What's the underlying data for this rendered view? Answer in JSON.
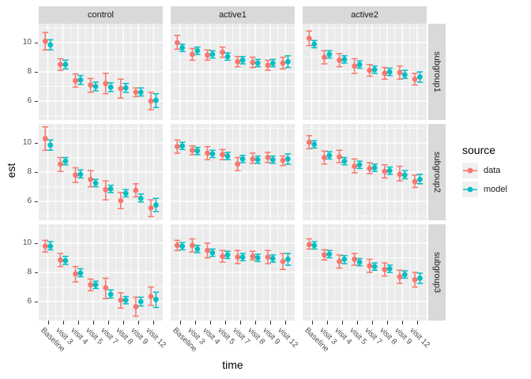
{
  "chart_data": {
    "type": "scatter",
    "subtype": "pointrange-facet-grid",
    "title": "",
    "xlabel": "time",
    "ylabel": "est",
    "yticks": [
      6,
      8,
      10
    ],
    "ylim": [
      4.7,
      11.3
    ],
    "grid": "on",
    "legend_position": "right",
    "categories": [
      "Baseline",
      "visit 3",
      "visit 4",
      "visit 5",
      "visit 7",
      "visit 8",
      "visit 9",
      "visit 12"
    ],
    "facet_cols": [
      "control",
      "active1",
      "active2"
    ],
    "facet_rows": [
      "subgroup1",
      "subgroup2",
      "subgroup3"
    ],
    "legend": {
      "title": "source",
      "entries": [
        {
          "label": "data",
          "color": "#F8766D"
        },
        {
          "label": "model",
          "color": "#00BFC4"
        }
      ]
    },
    "panels": [
      {
        "col": "control",
        "row": "subgroup1",
        "series": [
          {
            "name": "data",
            "color": "#F8766D",
            "est": [
              10.1,
              8.5,
              7.4,
              7.1,
              7.2,
              6.85,
              6.6,
              6.0
            ],
            "lo": [
              9.5,
              8.1,
              6.95,
              6.6,
              6.5,
              6.2,
              6.3,
              5.4
            ],
            "hi": [
              10.7,
              8.9,
              7.85,
              7.55,
              7.9,
              7.5,
              6.9,
              6.6
            ]
          },
          {
            "name": "model",
            "color": "#00BFC4",
            "est": [
              9.85,
              8.5,
              7.45,
              7.0,
              6.95,
              6.9,
              6.6,
              6.05
            ],
            "lo": [
              9.5,
              8.2,
              7.15,
              6.7,
              6.65,
              6.6,
              6.35,
              5.55
            ],
            "hi": [
              10.2,
              8.8,
              7.75,
              7.3,
              7.25,
              7.2,
              6.9,
              6.5
            ]
          }
        ]
      },
      {
        "col": "active1",
        "row": "subgroup1",
        "series": [
          {
            "name": "data",
            "color": "#F8766D",
            "est": [
              10.0,
              9.2,
              9.15,
              9.35,
              8.7,
              8.65,
              8.45,
              8.6
            ],
            "lo": [
              9.55,
              8.8,
              8.8,
              9.0,
              8.35,
              8.3,
              8.1,
              8.2
            ],
            "hi": [
              10.5,
              9.6,
              9.5,
              9.7,
              9.05,
              9.0,
              8.8,
              9.0
            ]
          },
          {
            "name": "model",
            "color": "#00BFC4",
            "est": [
              9.65,
              9.45,
              9.2,
              9.05,
              8.8,
              8.6,
              8.6,
              8.7
            ],
            "lo": [
              9.4,
              9.2,
              8.95,
              8.8,
              8.55,
              8.35,
              8.35,
              8.3
            ],
            "hi": [
              9.9,
              9.7,
              9.45,
              9.3,
              9.05,
              8.85,
              8.85,
              9.1
            ]
          }
        ]
      },
      {
        "col": "active2",
        "row": "subgroup1",
        "series": [
          {
            "name": "data",
            "color": "#F8766D",
            "est": [
              10.3,
              9.0,
              8.8,
              8.4,
              8.1,
              7.9,
              7.95,
              7.5
            ],
            "lo": [
              9.8,
              8.55,
              8.35,
              7.9,
              7.7,
              7.5,
              7.5,
              7.1
            ],
            "hi": [
              10.8,
              9.45,
              9.25,
              8.9,
              8.5,
              8.3,
              8.4,
              7.9
            ]
          },
          {
            "name": "model",
            "color": "#00BFC4",
            "est": [
              9.9,
              9.2,
              8.85,
              8.5,
              8.15,
              8.0,
              7.8,
              7.65
            ],
            "lo": [
              9.65,
              8.95,
              8.6,
              8.25,
              7.9,
              7.75,
              7.55,
              7.3
            ],
            "hi": [
              10.15,
              9.45,
              9.1,
              8.75,
              8.4,
              8.25,
              8.1,
              8.0
            ]
          }
        ]
      },
      {
        "col": "control",
        "row": "subgroup2",
        "series": [
          {
            "name": "data",
            "color": "#F8766D",
            "est": [
              10.3,
              8.55,
              7.8,
              7.5,
              6.8,
              6.05,
              6.75,
              5.55
            ],
            "lo": [
              9.5,
              8.05,
              7.3,
              7.0,
              6.1,
              5.5,
              6.3,
              4.95
            ],
            "hi": [
              11.1,
              9.0,
              8.3,
              8.1,
              7.4,
              6.6,
              7.2,
              6.1
            ]
          },
          {
            "name": "model",
            "color": "#00BFC4",
            "est": [
              9.85,
              8.75,
              7.85,
              7.25,
              6.85,
              6.55,
              6.2,
              5.75
            ],
            "lo": [
              9.5,
              8.5,
              7.6,
              7.0,
              6.6,
              6.3,
              5.95,
              5.3
            ],
            "hi": [
              10.2,
              9.0,
              8.15,
              7.5,
              7.1,
              6.8,
              6.5,
              6.2
            ]
          }
        ]
      },
      {
        "col": "active1",
        "row": "subgroup2",
        "series": [
          {
            "name": "data",
            "color": "#F8766D",
            "est": [
              9.75,
              9.5,
              9.3,
              9.2,
              8.55,
              8.9,
              9.0,
              8.8
            ],
            "lo": [
              9.3,
              9.2,
              8.85,
              8.85,
              8.1,
              8.6,
              8.65,
              8.45
            ],
            "hi": [
              10.2,
              9.8,
              9.75,
              9.55,
              9.0,
              9.3,
              9.35,
              9.1
            ]
          },
          {
            "name": "model",
            "color": "#00BFC4",
            "est": [
              9.8,
              9.45,
              9.25,
              9.1,
              8.9,
              8.85,
              8.85,
              8.9
            ],
            "lo": [
              9.55,
              9.2,
              9.0,
              8.85,
              8.65,
              8.6,
              8.6,
              8.55
            ],
            "hi": [
              10.05,
              9.7,
              9.5,
              9.35,
              9.15,
              9.1,
              9.1,
              9.25
            ]
          }
        ]
      },
      {
        "col": "active2",
        "row": "subgroup2",
        "series": [
          {
            "name": "data",
            "color": "#F8766D",
            "est": [
              10.05,
              9.0,
              9.05,
              8.4,
              8.25,
              8.05,
              7.85,
              7.35
            ],
            "lo": [
              9.6,
              8.55,
              8.65,
              7.95,
              7.9,
              7.6,
              7.4,
              6.95
            ],
            "hi": [
              10.5,
              9.45,
              9.5,
              8.9,
              8.65,
              8.5,
              8.4,
              7.8
            ]
          },
          {
            "name": "model",
            "color": "#00BFC4",
            "est": [
              9.9,
              9.15,
              8.75,
              8.5,
              8.3,
              8.1,
              7.8,
              7.5
            ],
            "lo": [
              9.65,
              8.9,
              8.5,
              8.25,
              8.05,
              7.85,
              7.55,
              7.2
            ],
            "hi": [
              10.15,
              9.4,
              9.0,
              8.75,
              8.55,
              8.35,
              8.1,
              7.85
            ]
          }
        ]
      },
      {
        "col": "control",
        "row": "subgroup3",
        "series": [
          {
            "name": "data",
            "color": "#F8766D",
            "est": [
              9.8,
              8.85,
              7.9,
              7.15,
              6.95,
              6.1,
              5.65,
              6.35
            ],
            "lo": [
              9.4,
              8.4,
              7.35,
              6.75,
              6.2,
              5.55,
              5.0,
              5.75
            ],
            "hi": [
              10.2,
              9.3,
              8.4,
              7.55,
              7.6,
              6.6,
              6.3,
              7.0
            ]
          },
          {
            "name": "model",
            "color": "#00BFC4",
            "est": [
              9.8,
              8.8,
              7.95,
              7.15,
              6.5,
              6.1,
              6.0,
              6.15
            ],
            "lo": [
              9.55,
              8.55,
              7.7,
              6.9,
              6.25,
              5.85,
              5.7,
              5.6
            ],
            "hi": [
              10.1,
              9.1,
              8.25,
              7.4,
              6.8,
              6.35,
              6.3,
              6.65
            ]
          }
        ]
      },
      {
        "col": "active1",
        "row": "subgroup3",
        "series": [
          {
            "name": "data",
            "color": "#F8766D",
            "est": [
              9.85,
              9.85,
              9.5,
              9.1,
              9.05,
              9.1,
              9.05,
              8.75
            ],
            "lo": [
              9.5,
              9.4,
              9.0,
              8.7,
              8.6,
              8.85,
              8.6,
              8.2
            ],
            "hi": [
              10.2,
              10.3,
              10.0,
              9.5,
              9.5,
              9.45,
              9.5,
              9.3
            ]
          },
          {
            "name": "model",
            "color": "#00BFC4",
            "est": [
              9.8,
              9.6,
              9.35,
              9.2,
              9.05,
              9.0,
              8.95,
              8.9
            ],
            "lo": [
              9.55,
              9.35,
              9.1,
              8.95,
              8.8,
              8.75,
              8.7,
              8.5
            ],
            "hi": [
              10.05,
              9.85,
              9.6,
              9.45,
              9.3,
              9.25,
              9.2,
              9.3
            ]
          }
        ]
      },
      {
        "col": "active2",
        "row": "subgroup3",
        "series": [
          {
            "name": "data",
            "color": "#F8766D",
            "est": [
              9.9,
              9.2,
              8.75,
              8.9,
              8.45,
              8.2,
              7.7,
              7.5
            ],
            "lo": [
              9.6,
              8.85,
              8.3,
              8.5,
              8.0,
              7.75,
              7.25,
              7.0
            ],
            "hi": [
              10.3,
              9.55,
              9.2,
              9.3,
              8.9,
              8.65,
              8.15,
              8.0
            ]
          },
          {
            "name": "model",
            "color": "#00BFC4",
            "est": [
              9.85,
              9.25,
              8.9,
              8.7,
              8.4,
              8.25,
              7.85,
              7.6
            ],
            "lo": [
              9.6,
              9.0,
              8.6,
              8.45,
              8.15,
              8.0,
              7.6,
              7.25
            ],
            "hi": [
              10.1,
              9.5,
              9.15,
              8.95,
              8.65,
              8.5,
              8.1,
              7.95
            ]
          }
        ]
      }
    ]
  }
}
